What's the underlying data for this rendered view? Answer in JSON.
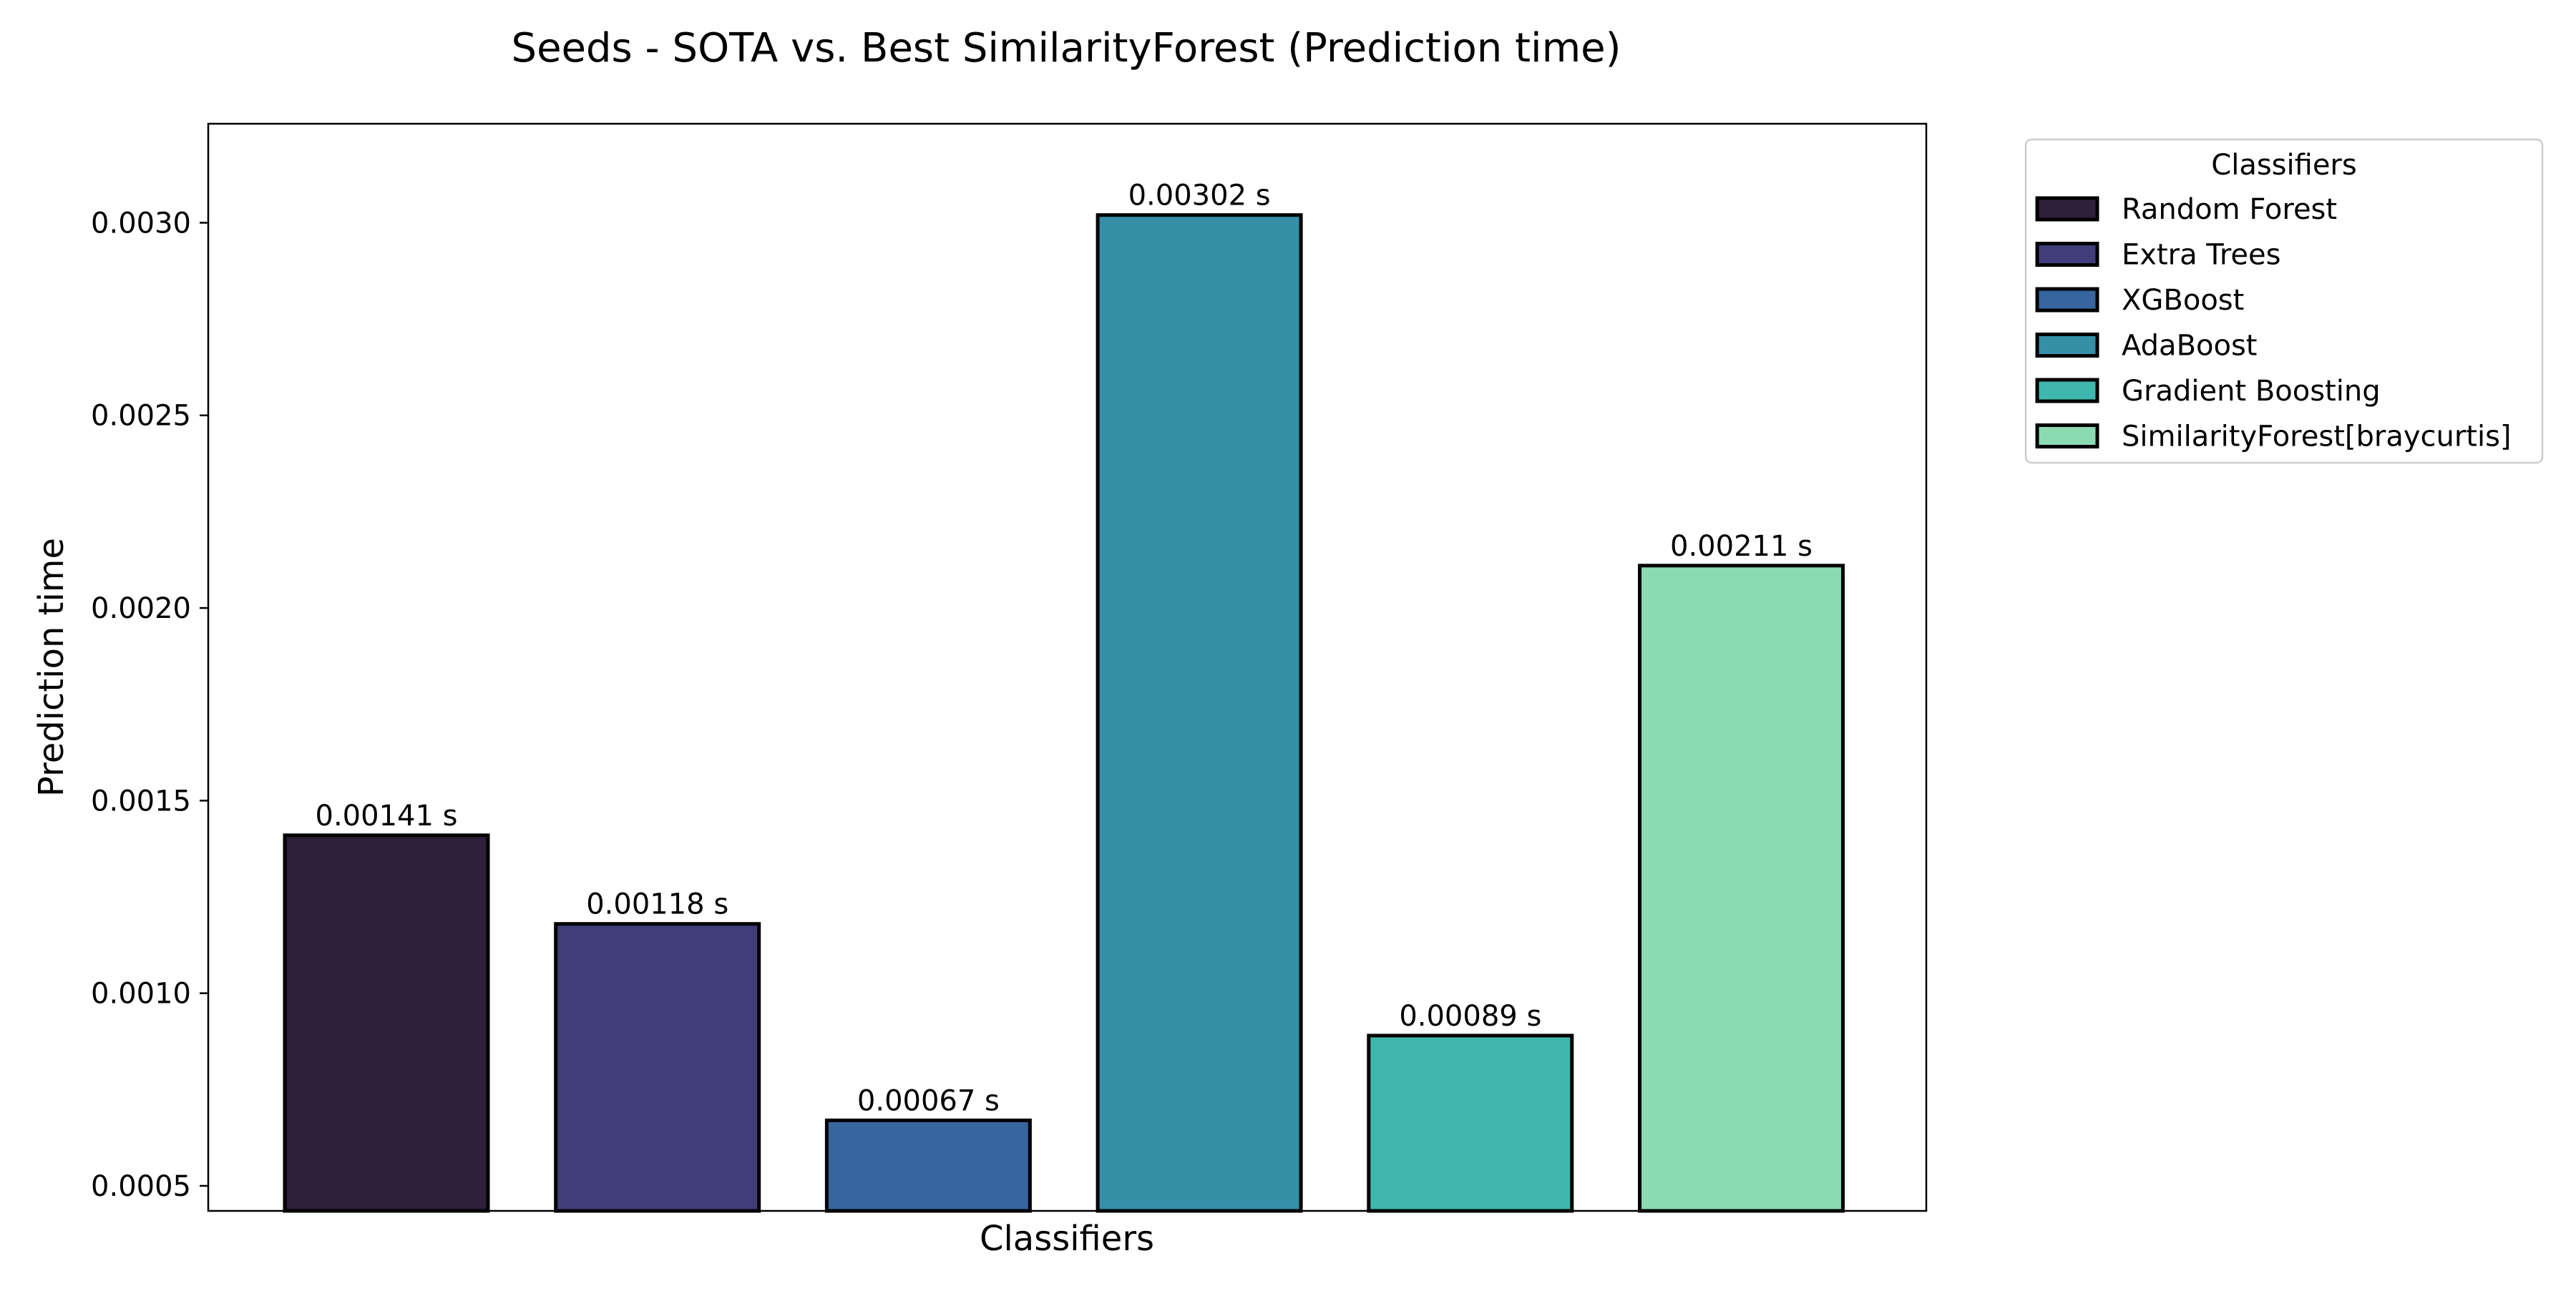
{
  "chart_data": {
    "type": "bar",
    "title": "Seeds - SOTA vs. Best SimilarityForest (Prediction time)",
    "xlabel": "Classifiers",
    "ylabel": "Prediction time",
    "categories": [
      "Random Forest",
      "Extra Trees",
      "XGBoost",
      "AdaBoost",
      "Gradient Boosting",
      "SimilarityForest[braycurtis]"
    ],
    "values": [
      0.00141,
      0.00118,
      0.00067,
      0.00302,
      0.00089,
      0.00211
    ],
    "data_labels": [
      "0.00141 s",
      "0.00118 s",
      "0.00067 s",
      "0.00302 s",
      "0.00089 s",
      "0.00211 s"
    ],
    "colors": [
      "#2e1f3b",
      "#413d7b",
      "#37659e",
      "#348fa7",
      "#40b7ad",
      "#8bdab2"
    ],
    "edge_color": "#000000",
    "ylim": [
      0.000435,
      0.003257
    ],
    "yticks": [
      0.0005,
      0.001,
      0.0015,
      0.002,
      0.0025,
      0.003
    ],
    "ytick_labels": [
      "0.0005",
      "0.0010",
      "0.0015",
      "0.0020",
      "0.0025",
      "0.0030"
    ],
    "grid": false,
    "legend": {
      "title": "Classifiers",
      "placement": "outside-upper-right"
    }
  }
}
